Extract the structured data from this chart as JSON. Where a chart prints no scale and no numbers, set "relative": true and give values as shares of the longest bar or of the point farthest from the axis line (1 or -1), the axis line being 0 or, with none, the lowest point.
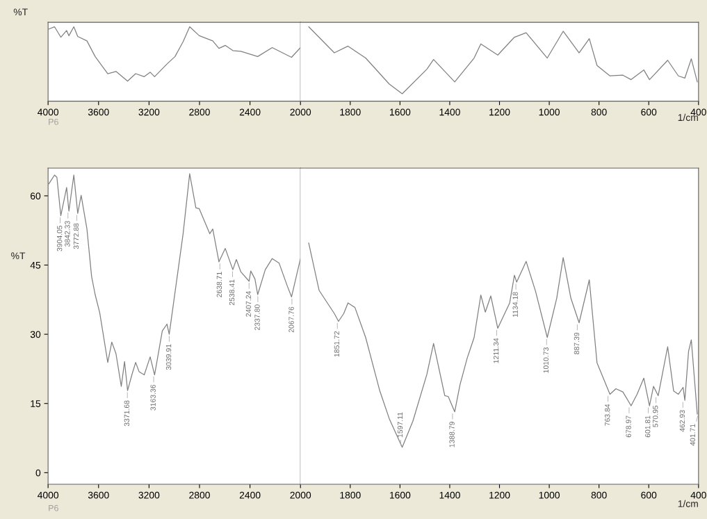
{
  "chart_data": [
    {
      "type": "line",
      "relative": true,
      "ylabel": "%T",
      "xlim": [
        4000,
        2000
      ],
      "xticks": [
        4000,
        3600,
        3200,
        2800,
        2400,
        2000
      ],
      "tick_labels": "x",
      "series": [
        {
          "color": "#808080",
          "x": [
            3994,
            3949,
            3899,
            3853,
            3835,
            3796,
            3765,
            3692,
            3627,
            3527,
            3462,
            3370,
            3306,
            3238,
            3191,
            3156,
            3058,
            2994,
            2930,
            2878,
            2802,
            2695,
            2646,
            2596,
            2536,
            2472,
            2339,
            2224,
            2071,
            2000
          ],
          "values": [
            0.97,
            1.0,
            0.86,
            0.95,
            0.88,
            1.0,
            0.87,
            0.81,
            0.6,
            0.37,
            0.4,
            0.27,
            0.37,
            0.33,
            0.39,
            0.33,
            0.5,
            0.6,
            0.8,
            1.0,
            0.88,
            0.81,
            0.71,
            0.75,
            0.68,
            0.67,
            0.6,
            0.72,
            0.59,
            0.72
          ]
        }
      ],
      "ref_lines": [
        {
          "axis": "x",
          "value": 2000,
          "color": "#a0a0a0"
        }
      ],
      "annotations": [
        "P6"
      ]
    },
    {
      "type": "line",
      "relative": true,
      "xlabel": "1/cm",
      "xlim": [
        2000,
        400
      ],
      "xticks": [
        1800,
        1600,
        1400,
        1200,
        1000,
        800,
        600,
        400
      ],
      "tick_labels": "x",
      "series": [
        {
          "color": "#808080",
          "x": [
            1967,
            1864,
            1809,
            1738,
            1643,
            1591,
            1492,
            1465,
            1380,
            1302,
            1275,
            1207,
            1140,
            1093,
            1008,
            944,
            880,
            839,
            808,
            756,
            704,
            671,
            620,
            597,
            524,
            481,
            455,
            429,
            405
          ],
          "values": [
            1.0,
            0.65,
            0.74,
            0.58,
            0.23,
            0.1,
            0.43,
            0.56,
            0.26,
            0.58,
            0.77,
            0.62,
            0.86,
            0.92,
            0.58,
            0.94,
            0.65,
            0.84,
            0.48,
            0.34,
            0.35,
            0.29,
            0.42,
            0.29,
            0.55,
            0.34,
            0.31,
            0.57,
            0.26
          ]
        }
      ]
    },
    {
      "type": "line",
      "ylabel": "%T",
      "xlim": [
        4000,
        2000
      ],
      "xticks": [
        4000,
        3600,
        3200,
        2800,
        2400,
        2000
      ],
      "ylim": [
        -2.5,
        66
      ],
      "yticks": [
        0,
        15,
        30,
        45,
        60
      ],
      "series": [
        {
          "color": "#808080",
          "x": [
            3994,
            3949,
            3930,
            3899,
            3853,
            3835,
            3796,
            3765,
            3738,
            3692,
            3655,
            3627,
            3591,
            3527,
            3495,
            3462,
            3420,
            3394,
            3370,
            3334,
            3306,
            3279,
            3238,
            3191,
            3156,
            3095,
            3058,
            3040,
            2994,
            2930,
            2878,
            2829,
            2802,
            2719,
            2695,
            2646,
            2596,
            2536,
            2508,
            2472,
            2407,
            2394,
            2361,
            2339,
            2279,
            2224,
            2169,
            2105,
            2071,
            2000
          ],
          "values": [
            62.6,
            64.5,
            64.0,
            55.7,
            61.8,
            56.7,
            64.5,
            56.2,
            60.1,
            52.8,
            42.5,
            38.6,
            34.7,
            23.9,
            28.3,
            25.8,
            18.7,
            24.1,
            17.8,
            21.4,
            23.9,
            21.9,
            21.2,
            25.1,
            21.2,
            30.7,
            32.2,
            30.0,
            39.1,
            51.8,
            64.8,
            57.4,
            57.2,
            51.8,
            52.8,
            45.7,
            48.6,
            44.0,
            46.2,
            43.5,
            41.5,
            43.7,
            42.0,
            38.6,
            44.0,
            46.4,
            45.4,
            40.5,
            38.1,
            46.4
          ]
        }
      ],
      "ref_lines": [
        {
          "axis": "x",
          "value": 2000,
          "color": "#a0a0a0"
        }
      ],
      "annotations": [
        "P6",
        {
          "text": "3904.05",
          "x": 3904.05,
          "y": 55.7
        },
        {
          "text": "3842.33",
          "x": 3842.33,
          "y": 56.7
        },
        {
          "text": "3772.88",
          "x": 3772.88,
          "y": 56.2
        },
        {
          "text": "3371.68",
          "x": 3371.68,
          "y": 17.8
        },
        {
          "text": "3163.36",
          "x": 3163.36,
          "y": 21.2
        },
        {
          "text": "3039.91",
          "x": 3039.91,
          "y": 30.0
        },
        {
          "text": "2638.71",
          "x": 2638.71,
          "y": 45.7
        },
        {
          "text": "2538.41",
          "x": 2538.41,
          "y": 44.0
        },
        {
          "text": "2407.24",
          "x": 2407.24,
          "y": 41.5
        },
        {
          "text": "2337.80",
          "x": 2337.8,
          "y": 38.6
        },
        {
          "text": "2067.76",
          "x": 2067.76,
          "y": 38.1
        }
      ]
    },
    {
      "type": "line",
      "xlabel": "1/cm",
      "xlim": [
        2000,
        400
      ],
      "xticks": [
        1800,
        1600,
        1400,
        1200,
        1000,
        800,
        600,
        400
      ],
      "ylim": [
        -2.5,
        66
      ],
      "tick_labels": "x",
      "series": [
        {
          "color": "#808080",
          "x": [
            1967,
            1925,
            1864,
            1847,
            1826,
            1809,
            1781,
            1738,
            1681,
            1643,
            1591,
            1548,
            1492,
            1465,
            1420,
            1406,
            1380,
            1359,
            1330,
            1302,
            1275,
            1257,
            1235,
            1207,
            1159,
            1140,
            1131,
            1093,
            1055,
            1008,
            970,
            944,
            913,
            880,
            839,
            808,
            756,
            732,
            704,
            671,
            647,
            620,
            597,
            581,
            562,
            524,
            500,
            481,
            462,
            455,
            440,
            429,
            405
          ],
          "values": [
            49.8,
            39.5,
            34.5,
            32.8,
            34.5,
            36.8,
            35.8,
            29.3,
            17.7,
            11.7,
            5.5,
            11.2,
            21.3,
            28.0,
            16.7,
            16.5,
            13.2,
            19.0,
            24.8,
            29.3,
            38.5,
            34.8,
            38.3,
            31.3,
            36.8,
            42.8,
            41.3,
            45.8,
            39.3,
            29.3,
            37.8,
            46.6,
            37.8,
            32.5,
            41.8,
            23.8,
            17.0,
            18.2,
            17.5,
            14.5,
            17.0,
            20.5,
            14.5,
            18.7,
            16.7,
            27.3,
            17.7,
            17.0,
            18.5,
            15.7,
            26.3,
            28.8,
            12.7
          ]
        }
      ],
      "annotations": [
        {
          "text": "1851.72",
          "x": 1851.72,
          "y": 32.8
        },
        {
          "text": "1597.11",
          "x": 1597.11,
          "y": 5.5
        },
        {
          "text": "1388.79",
          "x": 1388.79,
          "y": 13.2
        },
        {
          "text": "1211.34",
          "x": 1211.34,
          "y": 31.3
        },
        {
          "text": "1134.18",
          "x": 1134.18,
          "y": 41.3
        },
        {
          "text": "1010.73",
          "x": 1010.73,
          "y": 29.3
        },
        {
          "text": "887.39",
          "x": 887.39,
          "y": 32.5
        },
        {
          "text": "763.84",
          "x": 763.84,
          "y": 17.0
        },
        {
          "text": "678.97",
          "x": 678.97,
          "y": 14.5
        },
        {
          "text": "601.81",
          "x": 601.81,
          "y": 14.5
        },
        {
          "text": "570.95",
          "x": 570.95,
          "y": 16.7
        },
        {
          "text": "462.93",
          "x": 462.93,
          "y": 15.7
        },
        {
          "text": "401.71",
          "x": 401.71,
          "y": 12.7
        }
      ]
    }
  ]
}
